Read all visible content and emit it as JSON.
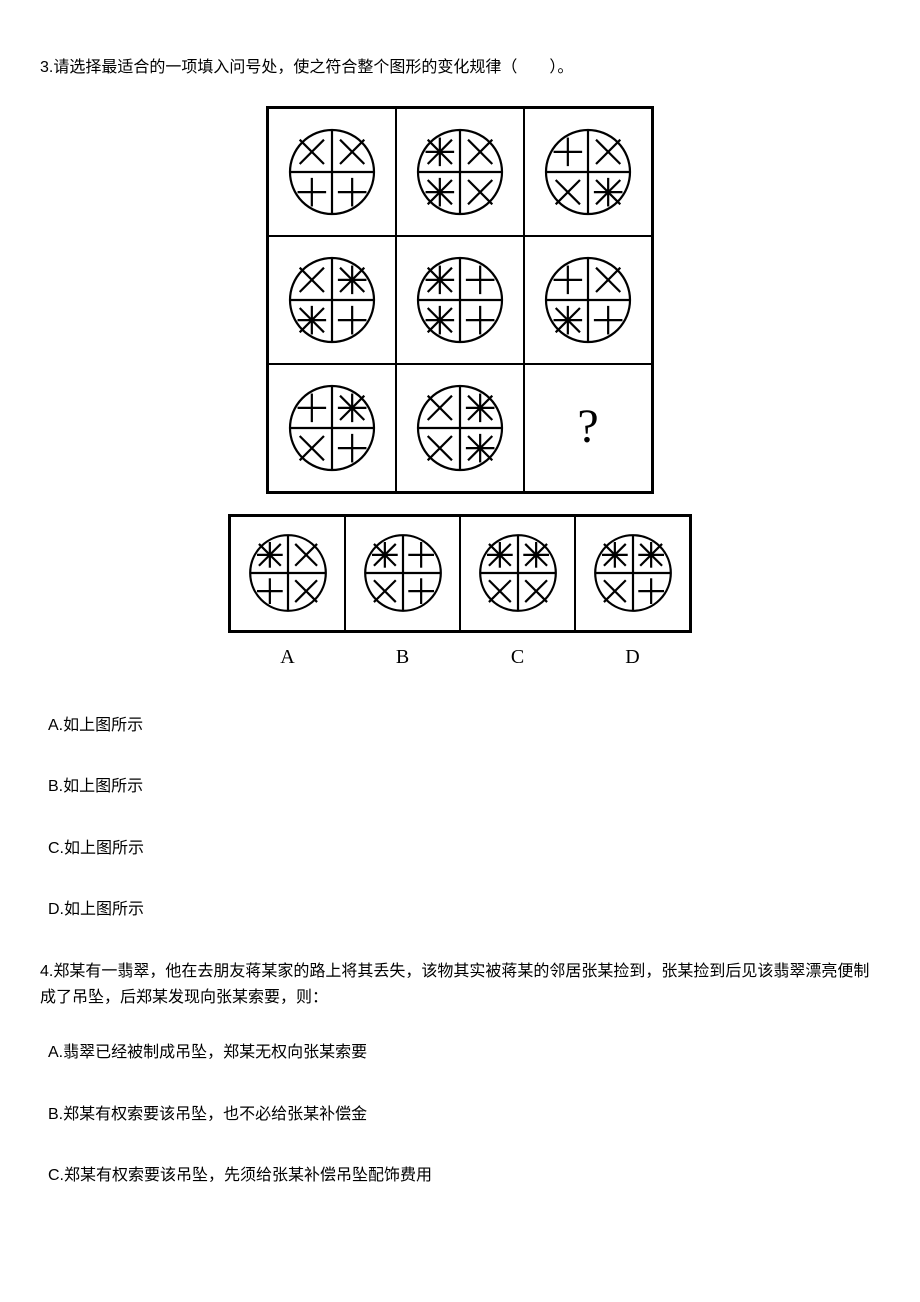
{
  "q3": {
    "text": "3.请选择最适合的一项填入问号处，使之符合整个图形的变化规律（　　）。",
    "option_labels": [
      "A",
      "B",
      "C",
      "D"
    ],
    "answers": {
      "a": "A.如上图所示",
      "b": "B.如上图所示",
      "c": "C.如上图所示",
      "d": "D.如上图所示"
    },
    "grid": [
      [
        [
          "x",
          "x",
          "p",
          "p"
        ],
        [
          "s",
          "x",
          "s",
          "x"
        ],
        [
          "p",
          "x",
          "x",
          "s"
        ]
      ],
      [
        [
          "x",
          "s",
          "s",
          "p"
        ],
        [
          "s",
          "p",
          "s",
          "p"
        ],
        [
          "p",
          "x",
          "s",
          "p"
        ]
      ],
      [
        [
          "p",
          "s",
          "x",
          "p"
        ],
        [
          "x",
          "s",
          "x",
          "s"
        ],
        "?"
      ]
    ],
    "options": [
      [
        "s",
        "x",
        "p",
        "x"
      ],
      [
        "s",
        "p",
        "x",
        "p"
      ],
      [
        "s",
        "s",
        "x",
        "x"
      ],
      [
        "s",
        "s",
        "x",
        "p"
      ]
    ],
    "style": {
      "stroke": "#000000",
      "stroke_width": 2.2,
      "circle_radius": 42,
      "cell_svg_size": 100,
      "option_svg_size": 90
    }
  },
  "q4": {
    "text": "4.郑某有一翡翠，他在去朋友蒋某家的路上将其丢失，该物其实被蒋某的邻居张某捡到，张某捡到后见该翡翠漂亮便制成了吊坠，后郑某发现向张某索要，则：",
    "answers": {
      "a": "A.翡翠已经被制成吊坠，郑某无权向张某索要",
      "b": "B.郑某有权索要该吊坠，也不必给张某补偿金",
      "c": "C.郑某有权索要该吊坠，先须给张某补偿吊坠配饰费用"
    }
  }
}
